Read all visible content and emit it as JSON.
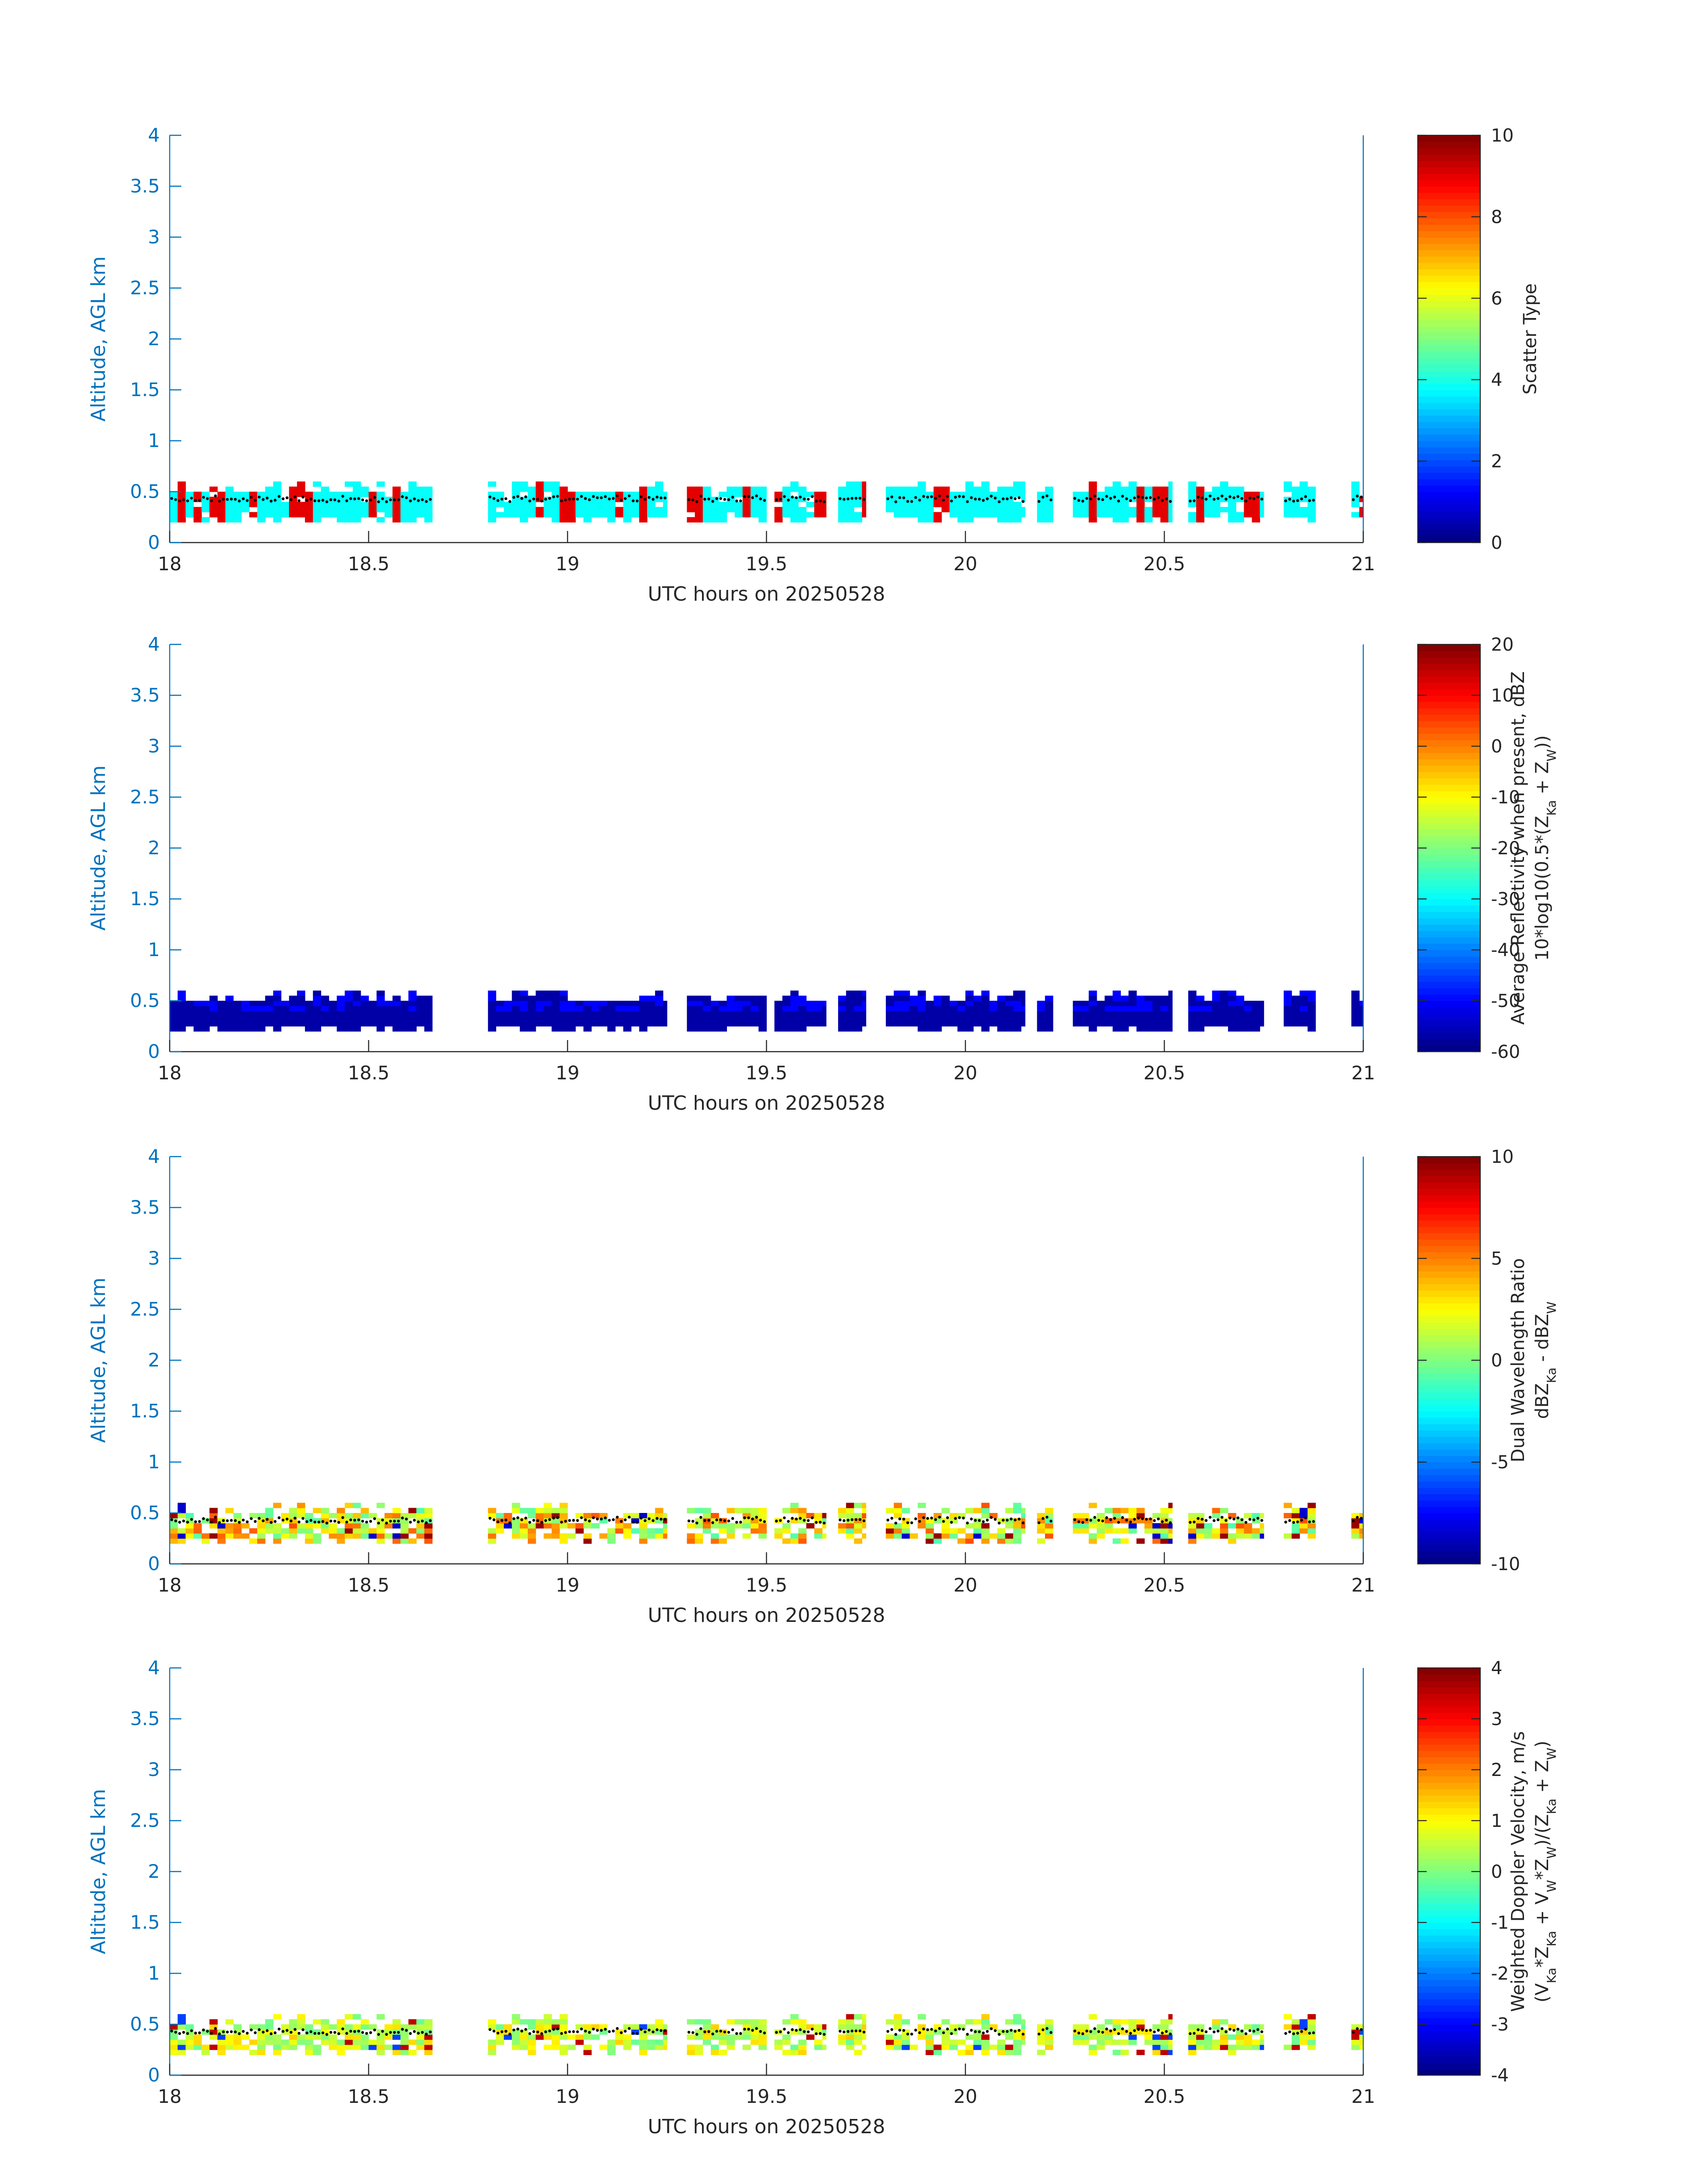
{
  "figure": {
    "colors": {
      "axis": "#0072BD",
      "text": "#262626",
      "colorbar_edge": "#262626"
    }
  },
  "chart_data": [
    {
      "type": "heatmap",
      "title": "",
      "xlabel": "UTC hours on 20250528",
      "ylabel": "Altitude, AGL km",
      "xlim": [
        18,
        21
      ],
      "ylim": [
        0,
        4
      ],
      "xticks": [
        18,
        18.5,
        19,
        19.5,
        20,
        20.5,
        21
      ],
      "yticks": [
        0,
        0.5,
        1,
        1.5,
        2,
        2.5,
        3,
        3.5,
        4
      ],
      "colorbar": {
        "label": [
          "Scatter Type"
        ],
        "clim": [
          0,
          10
        ],
        "ticks": [
          0,
          2,
          4,
          6,
          8,
          10
        ],
        "colormap": "jet"
      },
      "mode": "scatter",
      "base_value": 3.8,
      "alt_value": 9.0,
      "alt_fraction": 0.3
    },
    {
      "type": "heatmap",
      "title": "",
      "xlabel": "UTC hours on 20250528",
      "ylabel": "Altitude, AGL km",
      "xlim": [
        18,
        21
      ],
      "ylim": [
        0,
        4
      ],
      "xticks": [
        18,
        18.5,
        19,
        19.5,
        20,
        20.5,
        21
      ],
      "yticks": [
        0,
        0.5,
        1,
        1.5,
        2,
        2.5,
        3,
        3.5,
        4
      ],
      "colorbar": {
        "label": [
          "Average Reflectivity when present, dBZ",
          "10*log10(0.5*(Z_Ka + Z_W))"
        ],
        "clim": [
          -60,
          20
        ],
        "ticks": [
          -60,
          -50,
          -40,
          -30,
          -20,
          -10,
          0,
          10,
          20
        ],
        "colormap": "jet"
      },
      "mode": "reflectivity",
      "base_value": -57,
      "top_value": -50
    },
    {
      "type": "heatmap",
      "title": "",
      "xlabel": "UTC hours on 20250528",
      "ylabel": "Altitude, AGL km",
      "xlim": [
        18,
        21
      ],
      "ylim": [
        0,
        4
      ],
      "xticks": [
        18,
        18.5,
        19,
        19.5,
        20,
        20.5,
        21
      ],
      "yticks": [
        0,
        0.5,
        1,
        1.5,
        2,
        2.5,
        3,
        3.5,
        4
      ],
      "colorbar": {
        "label": [
          "Dual Wavelength Ratio",
          "dBZ_Ka - dBZ_W"
        ],
        "clim": [
          -10,
          10
        ],
        "ticks": [
          -10,
          -5,
          0,
          5,
          10
        ],
        "colormap": "jet"
      },
      "mode": "dwr",
      "base_value": 2.5,
      "spread": 3.5
    },
    {
      "type": "heatmap",
      "title": "",
      "xlabel": "UTC hours on 20250528",
      "ylabel": "Altitude, AGL km",
      "xlim": [
        18,
        21
      ],
      "ylim": [
        0,
        4
      ],
      "xticks": [
        18,
        18.5,
        19,
        19.5,
        20,
        20.5,
        21
      ],
      "yticks": [
        0,
        0.5,
        1,
        1.5,
        2,
        2.5,
        3,
        3.5,
        4
      ],
      "colorbar": {
        "label": [
          "Weighted Doppler Velocity, m/s",
          "(V_Ka*Z_Ka + V_W*Z_W)/(Z_Ka + Z_W)"
        ],
        "clim": [
          -4,
          4
        ],
        "ticks": [
          -4,
          -3,
          -2,
          -1,
          0,
          1,
          2,
          3,
          4
        ],
        "colormap": "jet"
      },
      "mode": "velocity",
      "base_value": 0.6,
      "spread": 0.8
    }
  ],
  "echo_layer": {
    "segments": [
      [
        18.0,
        18.56
      ],
      [
        18.56,
        18.66
      ],
      [
        18.8,
        19.0
      ],
      [
        19.0,
        19.25
      ],
      [
        19.3,
        19.5
      ],
      [
        19.52,
        19.65
      ],
      [
        19.68,
        19.75
      ],
      [
        19.8,
        20.15
      ],
      [
        20.18,
        20.22
      ],
      [
        20.27,
        20.52
      ],
      [
        20.56,
        20.75
      ],
      [
        20.8,
        20.88
      ],
      [
        20.97,
        21.0
      ]
    ],
    "bottom_km": [
      0.2,
      0.3
    ],
    "top_km": [
      0.45,
      0.6
    ],
    "cloud_base_km": 0.43
  }
}
